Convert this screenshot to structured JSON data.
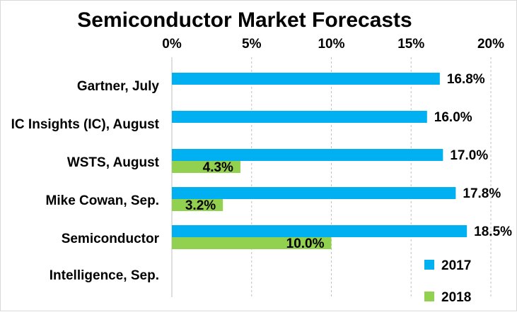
{
  "chart_data": {
    "type": "bar",
    "orientation": "horizontal",
    "title": "Semiconductor Market Forecasts",
    "xlabel": "",
    "ylabel": "",
    "xlim": [
      0,
      20
    ],
    "x_ticks": [
      "0%",
      "5%",
      "10%",
      "15%",
      "20%"
    ],
    "x_axis_position": "top",
    "grid": "vertical-dashed",
    "categories": [
      [
        "Gartner, July"
      ],
      [
        "IC Insights (IC), August"
      ],
      [
        "WSTS, August"
      ],
      [
        "Mike Cowan, Sep."
      ],
      [
        "Semiconductor",
        "Intelligence, Sep."
      ]
    ],
    "series": [
      {
        "name": "2017",
        "color": "#00b0f0",
        "values": [
          16.8,
          16.0,
          17.0,
          17.8,
          18.5
        ],
        "labels": [
          "16.8%",
          "16.0%",
          "17.0%",
          "17.8%",
          "18.5%"
        ]
      },
      {
        "name": "2018",
        "color": "#92d050",
        "values": [
          null,
          null,
          4.3,
          3.2,
          10.0
        ],
        "labels": [
          "",
          "",
          "4.3%",
          "3.2%",
          "10.0%"
        ]
      }
    ],
    "legend_placement": "bottom-right"
  }
}
